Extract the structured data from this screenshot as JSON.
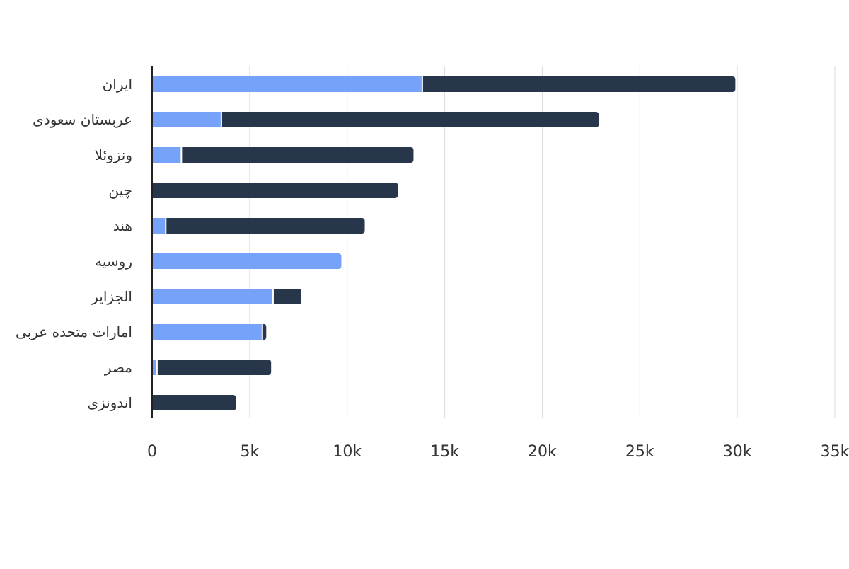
{
  "chart_data": {
    "type": "bar",
    "orientation": "horizontal",
    "stacked": true,
    "categories": [
      "ایران",
      "عربستان سعودی",
      "ونزوئلا",
      "چین",
      "هند",
      "روسیه",
      "الجزایر",
      "امارات متحده عربی",
      "مصر",
      "اندونزی"
    ],
    "series": [
      {
        "color": "#76a2fa",
        "values": [
          13850,
          3550,
          1500,
          0,
          700,
          9700,
          6200,
          5650,
          250,
          0
        ]
      },
      {
        "color": "#27364a",
        "values": [
          16050,
          19350,
          11900,
          12600,
          10200,
          0,
          1450,
          200,
          5850,
          4300
        ]
      }
    ],
    "xlim": [
      0,
      35000
    ],
    "x_ticks": [
      0,
      5000,
      10000,
      15000,
      20000,
      25000,
      30000,
      35000
    ],
    "x_tick_labels": [
      "0",
      "5k",
      "10k",
      "15k",
      "20k",
      "25k",
      "30k",
      "35k"
    ],
    "grid": true,
    "legend": "none",
    "title": "",
    "xlabel": "",
    "ylabel": ""
  }
}
